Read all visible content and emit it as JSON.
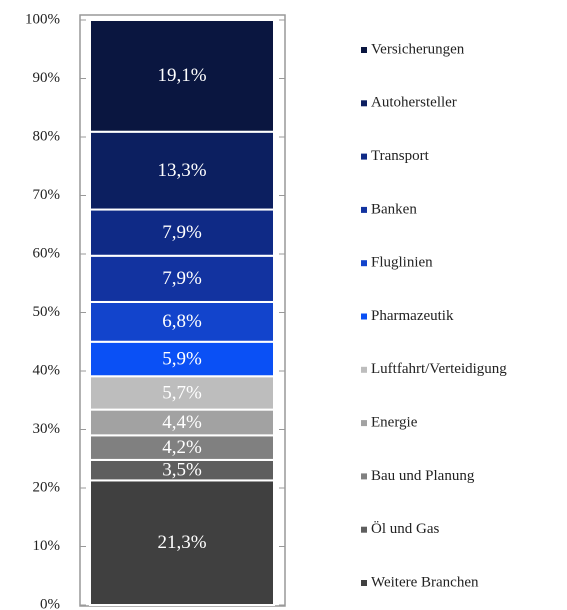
{
  "chart_data": {
    "type": "bar",
    "stacked": true,
    "categories": [
      null
    ],
    "series": [
      {
        "name": "Weitere Branchen",
        "color": "#404040",
        "values": [
          21.3
        ],
        "value_labels": [
          "21,3%"
        ]
      },
      {
        "name": "Öl und Gas",
        "color": "#5e5e5e",
        "values": [
          3.5
        ],
        "value_labels": [
          "3,5%"
        ]
      },
      {
        "name": "Bau und Planung",
        "color": "#808080",
        "values": [
          4.2
        ],
        "value_labels": [
          "4,2%"
        ]
      },
      {
        "name": "Energie",
        "color": "#a2a2a2",
        "values": [
          4.4
        ],
        "value_labels": [
          "4,4%"
        ]
      },
      {
        "name": "Luftfahrt/Verteidigung",
        "color": "#bdbdbd",
        "values": [
          5.7
        ],
        "value_labels": [
          "5,7%"
        ]
      },
      {
        "name": "Pharmazeutik",
        "color": "#0a50f5",
        "values": [
          5.9
        ],
        "value_labels": [
          "5,9%"
        ]
      },
      {
        "name": "Fluglinien",
        "color": "#1244cc",
        "values": [
          6.8
        ],
        "value_labels": [
          "6,8%"
        ]
      },
      {
        "name": "Banken",
        "color": "#1233a0",
        "values": [
          7.9
        ],
        "value_labels": [
          "7,9%"
        ]
      },
      {
        "name": "Transport",
        "color": "#0f2a86",
        "values": [
          7.9
        ],
        "value_labels": [
          "7,9%"
        ]
      },
      {
        "name": "Autohersteller",
        "color": "#0c1f60",
        "values": [
          13.3
        ],
        "value_labels": [
          "13,3%"
        ]
      },
      {
        "name": "Versicherungen",
        "color": "#0a1640",
        "values": [
          19.1
        ],
        "value_labels": [
          "19,1%"
        ]
      }
    ],
    "ylim": [
      0,
      100
    ],
    "yticks": [
      {
        "value": 0,
        "label": "0%"
      },
      {
        "value": 10,
        "label": "10%"
      },
      {
        "value": 20,
        "label": "20%"
      },
      {
        "value": 30,
        "label": "30%"
      },
      {
        "value": 40,
        "label": "40%"
      },
      {
        "value": 50,
        "label": "50%"
      },
      {
        "value": 60,
        "label": "60%"
      },
      {
        "value": 70,
        "label": "70%"
      },
      {
        "value": 80,
        "label": "80%"
      },
      {
        "value": 90,
        "label": "90%"
      },
      {
        "value": 100,
        "label": "100%"
      }
    ],
    "legend": "right"
  }
}
